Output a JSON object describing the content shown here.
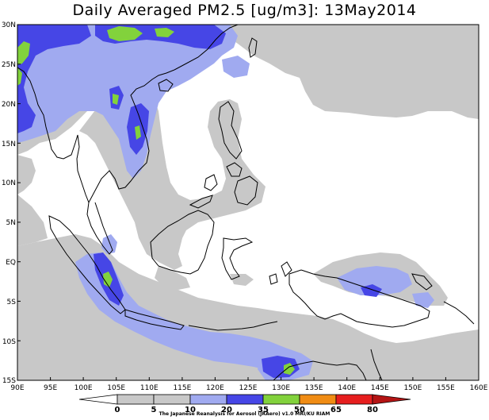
{
  "title": "Daily Averaged PM2.5 [ug/m3]: 13May2014",
  "credit": "The Japanese Reanalysis for Aerosol (JRAero) v1.0 MRI/KU RIAM",
  "lat_labels": [
    "30N",
    "25N",
    "20N",
    "15N",
    "10N",
    "5N",
    "EQ",
    "5S",
    "10S",
    "15S"
  ],
  "lon_labels": [
    "90E",
    "95E",
    "100E",
    "105E",
    "110E",
    "115E",
    "120E",
    "125E",
    "130E",
    "135E",
    "140E",
    "145E",
    "150E",
    "155E",
    "160E"
  ],
  "colorbar": {
    "ticks": [
      "0",
      "5",
      "10",
      "20",
      "35",
      "50",
      "65",
      "80"
    ],
    "colors": [
      "#ffffff",
      "#c8c8c8",
      "#a0aaf0",
      "#4646e6",
      "#82d23c",
      "#f08c14",
      "#e61e1e",
      "#b41414"
    ]
  },
  "legend_colors": {
    "level_5_10": "#c8c8c8",
    "level_10_20": "#a0aaf0",
    "level_20_35": "#4646e6",
    "level_35_50": "#82d23c"
  }
}
